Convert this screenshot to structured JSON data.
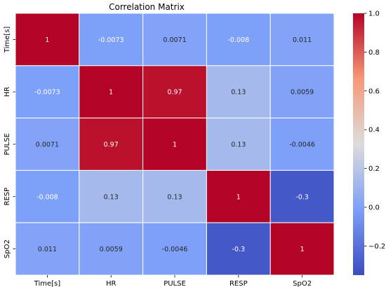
{
  "chart_data": {
    "type": "heatmap",
    "title": "Correlation Matrix",
    "xlabel": "",
    "ylabel": "",
    "x_categories": [
      "Time[s]",
      "HR",
      "PULSE",
      "RESP",
      "SpO2"
    ],
    "y_categories": [
      "Time[s]",
      "HR",
      "PULSE",
      "RESP",
      "SpO2"
    ],
    "values": [
      [
        1,
        -0.0073,
        0.0071,
        -0.008,
        0.011
      ],
      [
        -0.0073,
        1,
        0.97,
        0.13,
        0.0059
      ],
      [
        0.0071,
        0.97,
        1,
        0.13,
        -0.0046
      ],
      [
        -0.008,
        0.13,
        0.13,
        1,
        -0.3
      ],
      [
        0.011,
        0.0059,
        -0.0046,
        -0.3,
        1
      ]
    ],
    "annotations": [
      [
        "1",
        "-0.0073",
        "0.0071",
        "-0.008",
        "0.011"
      ],
      [
        "-0.0073",
        "1",
        "0.97",
        "0.13",
        "0.0059"
      ],
      [
        "0.0071",
        "0.97",
        "1",
        "0.13",
        "-0.0046"
      ],
      [
        "-0.008",
        "0.13",
        "0.13",
        "1",
        "-0.3"
      ],
      [
        "0.011",
        "0.0059",
        "-0.0046",
        "-0.3",
        "1"
      ]
    ],
    "colormap": "coolwarm",
    "colorbar": {
      "range": [
        -0.35,
        1.0
      ],
      "ticks": [
        -0.2,
        0.0,
        0.2,
        0.4,
        0.6,
        0.8,
        1.0
      ],
      "tick_labels": [
        "−0.2",
        "0.0",
        "0.2",
        "0.4",
        "0.6",
        "0.8",
        "1.0"
      ]
    }
  }
}
